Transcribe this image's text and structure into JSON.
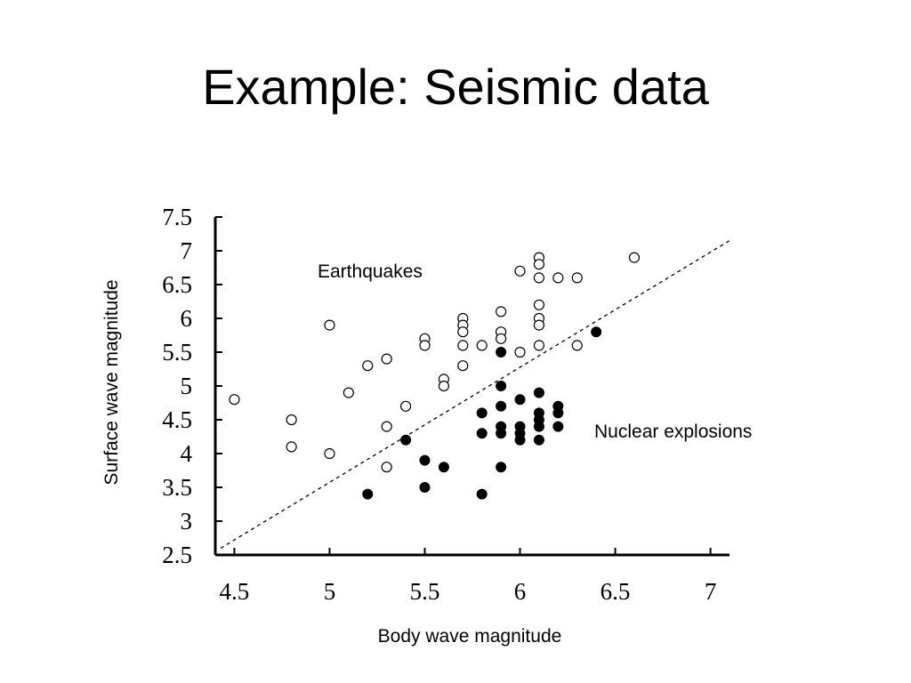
{
  "slide": {
    "title": "Example: Seismic data"
  },
  "chart_data": {
    "type": "scatter",
    "title": "",
    "xlabel": "Body wave magnitude",
    "ylabel": "Surface wave magnitude",
    "xlim": [
      4.4,
      7.1
    ],
    "ylim": [
      2.5,
      7.5
    ],
    "xticks": [
      "4.5",
      "5",
      "5.5",
      "6",
      "6.5",
      "7"
    ],
    "yticks": [
      "2.5",
      "3",
      "3.5",
      "4",
      "4.5",
      "5",
      "5.5",
      "6",
      "6.5",
      "7",
      "7.5"
    ],
    "grid": false,
    "annotations": [
      "Earthquakes",
      "Nuclear explosions"
    ],
    "divider_line": {
      "style": "dashed",
      "from": [
        4.4,
        2.6
      ],
      "to": [
        7.1,
        7.15
      ]
    },
    "series": [
      {
        "name": "Earthquakes",
        "marker": "open-circle",
        "points": [
          [
            4.5,
            4.8
          ],
          [
            4.8,
            4.5
          ],
          [
            4.8,
            4.1
          ],
          [
            5.0,
            4.0
          ],
          [
            5.0,
            5.9
          ],
          [
            5.1,
            4.9
          ],
          [
            5.2,
            5.3
          ],
          [
            5.3,
            5.4
          ],
          [
            5.3,
            4.4
          ],
          [
            5.3,
            3.8
          ],
          [
            5.4,
            4.7
          ],
          [
            5.5,
            5.7
          ],
          [
            5.5,
            5.6
          ],
          [
            5.6,
            5.1
          ],
          [
            5.6,
            5.0
          ],
          [
            5.7,
            6.0
          ],
          [
            5.7,
            5.9
          ],
          [
            5.7,
            5.8
          ],
          [
            5.7,
            5.6
          ],
          [
            5.7,
            5.3
          ],
          [
            5.8,
            5.6
          ],
          [
            5.9,
            6.1
          ],
          [
            5.9,
            5.8
          ],
          [
            5.9,
            5.7
          ],
          [
            6.0,
            6.7
          ],
          [
            6.0,
            5.5
          ],
          [
            6.1,
            6.9
          ],
          [
            6.1,
            6.8
          ],
          [
            6.1,
            6.6
          ],
          [
            6.1,
            6.2
          ],
          [
            6.1,
            6.0
          ],
          [
            6.1,
            5.9
          ],
          [
            6.1,
            5.6
          ],
          [
            6.2,
            6.6
          ],
          [
            6.3,
            6.6
          ],
          [
            6.3,
            5.6
          ],
          [
            6.6,
            6.9
          ]
        ]
      },
      {
        "name": "Nuclear explosions",
        "marker": "filled-circle",
        "points": [
          [
            5.2,
            3.4
          ],
          [
            5.4,
            4.2
          ],
          [
            5.5,
            3.9
          ],
          [
            5.5,
            3.5
          ],
          [
            5.6,
            3.8
          ],
          [
            5.8,
            4.6
          ],
          [
            5.8,
            4.3
          ],
          [
            5.8,
            3.4
          ],
          [
            5.9,
            5.5
          ],
          [
            5.9,
            5.0
          ],
          [
            5.9,
            4.7
          ],
          [
            5.9,
            4.4
          ],
          [
            5.9,
            4.3
          ],
          [
            5.9,
            3.8
          ],
          [
            6.0,
            4.8
          ],
          [
            6.0,
            4.4
          ],
          [
            6.0,
            4.3
          ],
          [
            6.0,
            4.2
          ],
          [
            6.1,
            4.9
          ],
          [
            6.1,
            4.6
          ],
          [
            6.1,
            4.5
          ],
          [
            6.1,
            4.4
          ],
          [
            6.1,
            4.2
          ],
          [
            6.2,
            4.7
          ],
          [
            6.2,
            4.6
          ],
          [
            6.2,
            4.4
          ],
          [
            6.4,
            5.8
          ]
        ]
      }
    ]
  }
}
